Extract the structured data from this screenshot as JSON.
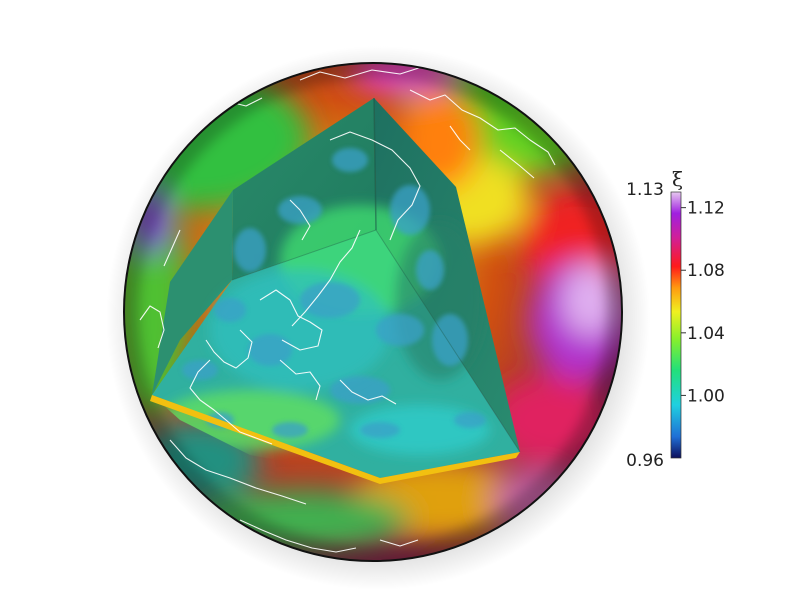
{
  "colorbar": {
    "symbol": "ξ",
    "max_label": "1.13",
    "min_label": "0.96",
    "range": [
      0.96,
      1.13
    ],
    "ticks": [
      {
        "value": 1.12,
        "label": "1.12"
      },
      {
        "value": 1.08,
        "label": "1.08"
      },
      {
        "value": 1.04,
        "label": "1.04"
      },
      {
        "value": 1.0,
        "label": "1.00"
      }
    ],
    "colormap": [
      "#0d0f5c",
      "#1f6fd6",
      "#1fd0e0",
      "#22e07a",
      "#8af02a",
      "#f0f020",
      "#ff9a10",
      "#ff1a1a",
      "#d0209a",
      "#a020e0",
      "#e6c8f0"
    ]
  },
  "colors": {
    "sphere_outline": "#111111",
    "coastlines": "#ffffff"
  }
}
